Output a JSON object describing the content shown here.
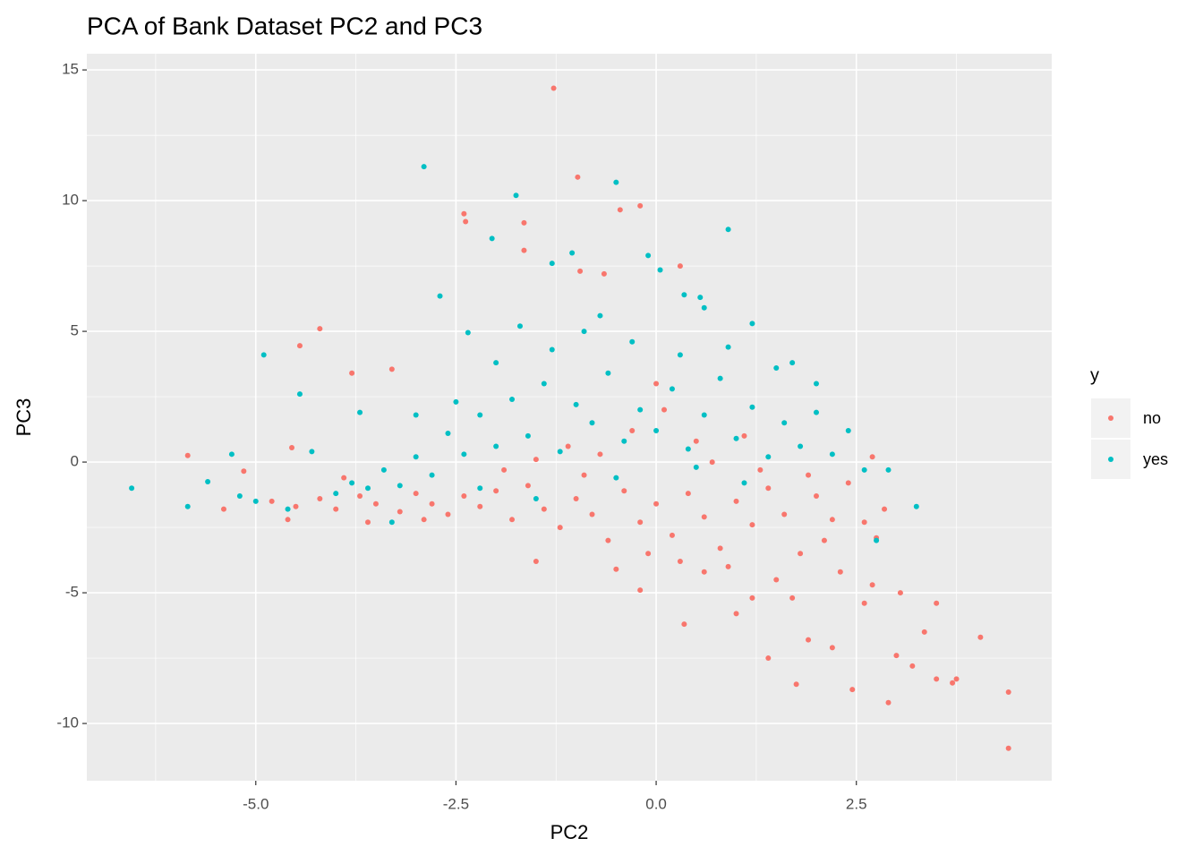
{
  "chart_data": {
    "type": "scatter",
    "title": "PCA of Bank Dataset PC2 and PC3",
    "x_label": "PC2",
    "y_label": "PC3",
    "legend_title": "y",
    "xlim": [
      -7.11,
      4.94
    ],
    "ylim": [
      -12.19,
      15.62
    ],
    "xticks": [
      {
        "value": -5,
        "label": "-5.0"
      },
      -2.5,
      {
        "value": 0,
        "label": "0.0"
      },
      2.5
    ],
    "yticks": [
      -10,
      -5,
      0,
      5,
      10,
      15
    ],
    "x_minor_ticks": [
      -6.25,
      -3.75,
      -1.25,
      1.25,
      3.75
    ],
    "y_minor_ticks": [
      -7.5,
      -2.5,
      2.5,
      7.5,
      12.5
    ],
    "grid": true,
    "legend_position": "right",
    "series": [
      {
        "name": "no",
        "color": "#F8766D",
        "x": [
          -1.28,
          -0.98,
          -2.4,
          -2.38,
          -1.65,
          -0.45,
          -0.2,
          -1.65,
          0.3,
          -0.65,
          -0.95,
          -4.2,
          -4.45,
          -3.8,
          -3.3,
          -5.85,
          -5.4,
          -5.15,
          -4.55,
          -1.5,
          -0.2,
          0.35,
          1.4,
          1.75,
          2.45,
          2.9,
          3.5,
          3.75,
          4.4,
          4.4,
          3.7,
          4.05,
          3.2,
          3.0,
          2.2,
          1.9,
          2.6,
          3.5,
          3.05,
          3.35,
          2.7,
          1.0,
          1.2,
          0.6,
          2.75,
          2.6,
          2.85,
          2.7,
          -4.8,
          -4.5,
          -4.2,
          -4.0,
          -3.7,
          -3.5,
          -3.2,
          -3.0,
          -2.8,
          -2.6,
          -2.4,
          -2.2,
          -2.0,
          -1.8,
          -1.6,
          -1.4,
          -1.2,
          -1.0,
          -0.8,
          -0.6,
          -0.4,
          -0.2,
          0.0,
          0.2,
          0.4,
          0.6,
          0.8,
          1.0,
          1.2,
          1.4,
          1.6,
          1.8,
          2.0,
          2.2,
          2.4,
          1.9,
          1.3,
          0.5,
          0.1,
          -0.3,
          -0.7,
          -1.1,
          -1.5,
          -1.9,
          -3.9,
          -3.6,
          -2.9,
          -4.6,
          0.9,
          1.5,
          2.3,
          1.7,
          2.1,
          0.3,
          -0.1,
          -0.5,
          0.7,
          1.1,
          -0.9,
          0.0
        ],
        "values": [
          14.3,
          10.9,
          9.5,
          9.2,
          9.15,
          9.65,
          9.8,
          8.1,
          7.5,
          7.2,
          7.3,
          5.1,
          4.45,
          3.4,
          3.55,
          0.25,
          -1.8,
          -0.35,
          0.55,
          -3.8,
          -4.9,
          -6.2,
          -7.5,
          -8.5,
          -8.7,
          -9.2,
          -8.3,
          -8.3,
          -8.8,
          -10.95,
          -8.45,
          -6.7,
          -7.8,
          -7.4,
          -7.1,
          -6.8,
          -5.4,
          -5.4,
          -5.0,
          -6.5,
          -4.7,
          -5.8,
          -5.2,
          -4.2,
          -2.9,
          -2.3,
          -1.8,
          0.2,
          -1.5,
          -1.7,
          -1.4,
          -1.8,
          -1.3,
          -1.6,
          -1.9,
          -1.2,
          -1.6,
          -2.0,
          -1.3,
          -1.7,
          -1.1,
          -2.2,
          -0.9,
          -1.8,
          -2.5,
          -1.4,
          -2.0,
          -3.0,
          -1.1,
          -2.3,
          -1.6,
          -2.8,
          -1.2,
          -2.1,
          -3.3,
          -1.5,
          -2.4,
          -1.0,
          -2.0,
          -3.5,
          -1.3,
          -2.2,
          -0.8,
          -0.5,
          -0.3,
          0.8,
          2.0,
          1.2,
          0.3,
          0.6,
          0.1,
          -0.3,
          -0.6,
          -2.3,
          -2.2,
          -2.2,
          -4.0,
          -4.5,
          -4.2,
          -5.2,
          -3.0,
          -3.8,
          -3.5,
          -4.1,
          0.0,
          1.0,
          -0.5,
          3.0
        ]
      },
      {
        "name": "yes",
        "color": "#00BFC4",
        "x": [
          -6.55,
          -5.85,
          -5.6,
          -5.3,
          -5.2,
          -4.9,
          -4.45,
          -2.9,
          -1.75,
          -0.5,
          -2.05,
          -1.05,
          0.9,
          -0.1,
          0.05,
          -1.3,
          -2.7,
          0.35,
          0.55,
          1.2,
          -2.35,
          3.25,
          2.9,
          2.75,
          -4.0,
          -3.8,
          -3.6,
          -3.4,
          -3.2,
          -3.0,
          -2.8,
          -2.6,
          -2.4,
          -2.2,
          -2.0,
          -1.8,
          -1.6,
          -1.4,
          -1.2,
          -1.0,
          -0.8,
          -0.6,
          -0.4,
          -0.2,
          0.0,
          0.2,
          0.4,
          0.6,
          0.8,
          1.0,
          1.2,
          1.4,
          1.6,
          1.8,
          2.0,
          2.2,
          2.4,
          2.6,
          -1.3,
          -0.9,
          -0.3,
          0.3,
          0.9,
          1.5,
          -2.0,
          -1.7,
          -0.7,
          0.6,
          -3.0,
          -2.5,
          -4.3,
          -3.7,
          -2.2,
          -1.5,
          -0.5,
          0.5,
          1.1,
          2.0,
          1.7,
          -3.3,
          -4.6,
          -5.0
        ],
        "values": [
          -1.0,
          -1.7,
          -0.75,
          0.3,
          -1.3,
          4.1,
          2.6,
          11.3,
          10.2,
          10.7,
          8.55,
          8.0,
          8.9,
          7.9,
          7.35,
          7.6,
          6.35,
          6.4,
          6.3,
          5.3,
          4.95,
          -1.7,
          -0.3,
          -3.0,
          -1.2,
          -0.8,
          -1.0,
          -0.3,
          -0.9,
          0.2,
          -0.5,
          1.1,
          0.3,
          1.8,
          0.6,
          2.4,
          1.0,
          3.0,
          0.4,
          2.2,
          1.5,
          3.4,
          0.8,
          2.0,
          1.2,
          2.8,
          0.5,
          1.8,
          3.2,
          0.9,
          2.1,
          0.2,
          1.5,
          0.6,
          1.9,
          0.3,
          1.2,
          -0.3,
          4.3,
          5.0,
          4.6,
          4.1,
          4.4,
          3.6,
          3.8,
          5.2,
          5.6,
          5.9,
          1.8,
          2.3,
          0.4,
          1.9,
          -1.0,
          -1.4,
          -0.6,
          -0.2,
          -0.8,
          3.0,
          3.8,
          -2.3,
          -1.8,
          -1.5
        ]
      }
    ]
  }
}
